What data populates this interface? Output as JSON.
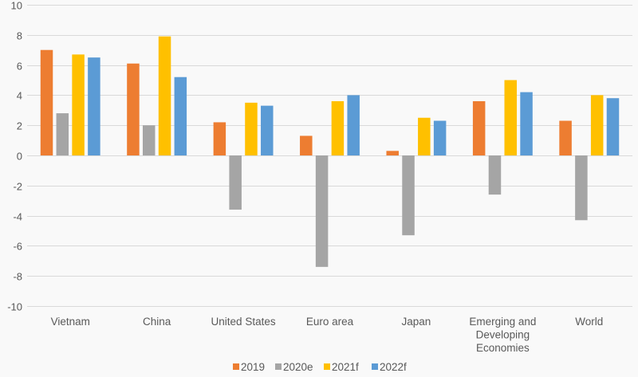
{
  "chart_data": {
    "type": "bar",
    "title": "",
    "xlabel": "",
    "ylabel": "",
    "ylim": [
      -10,
      10
    ],
    "yticks": [
      -10,
      -8,
      -6,
      -4,
      -2,
      0,
      2,
      4,
      6,
      8,
      10
    ],
    "grid": true,
    "legend_position": "bottom",
    "categories": [
      [
        "Vietnam"
      ],
      [
        "China"
      ],
      [
        "United States"
      ],
      [
        "Euro area"
      ],
      [
        "Japan"
      ],
      [
        "Emerging and",
        "Developing",
        "Economies"
      ],
      [
        "World"
      ]
    ],
    "series": [
      {
        "name": "2019",
        "color": "#ED7D31",
        "values": [
          7.0,
          6.1,
          2.2,
          1.3,
          0.3,
          3.6,
          2.3
        ]
      },
      {
        "name": "2020e",
        "color": "#A5A5A5",
        "values": [
          2.8,
          2.0,
          -3.6,
          -7.4,
          -5.3,
          -2.6,
          -4.3
        ]
      },
      {
        "name": "2021f",
        "color": "#FFC000",
        "values": [
          6.7,
          7.9,
          3.5,
          3.6,
          2.5,
          5.0,
          4.0
        ]
      },
      {
        "name": "2022f",
        "color": "#5B9BD5",
        "values": [
          6.5,
          5.2,
          3.3,
          4.0,
          2.3,
          4.2,
          3.8
        ]
      }
    ]
  }
}
